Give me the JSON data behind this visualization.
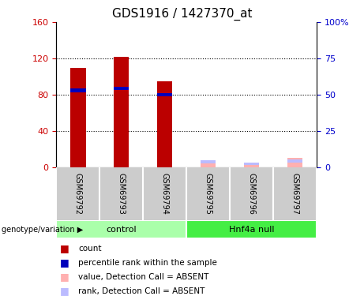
{
  "title": "GDS1916 / 1427370_at",
  "samples": [
    "GSM69792",
    "GSM69793",
    "GSM69794",
    "GSM69795",
    "GSM69796",
    "GSM69797"
  ],
  "groups": [
    {
      "label": "control",
      "indices": [
        0,
        1,
        2
      ],
      "color": "#aaffaa"
    },
    {
      "label": "Hnf4a null",
      "indices": [
        3,
        4,
        5
      ],
      "color": "#44ee44"
    }
  ],
  "red_bars": [
    110,
    122,
    95,
    0,
    0,
    0
  ],
  "blue_markers": [
    85,
    87,
    80,
    0,
    0,
    0
  ],
  "pink_bars": [
    0,
    0,
    0,
    8,
    5,
    10
  ],
  "lightblue_markers": [
    0,
    0,
    0,
    6,
    4,
    7
  ],
  "ylim_left": [
    0,
    160
  ],
  "ylim_right": [
    0,
    100
  ],
  "yticks_left": [
    0,
    40,
    80,
    120,
    160
  ],
  "yticks_right": [
    0,
    25,
    50,
    75,
    100
  ],
  "ytick_labels_right": [
    "0",
    "25",
    "50",
    "75",
    "100%"
  ],
  "grid_lines": [
    40,
    80,
    120
  ],
  "bar_width": 0.35,
  "red_color": "#BB0000",
  "blue_color": "#0000BB",
  "pink_color": "#FFB0B0",
  "lightblue_color": "#BBBBFF",
  "bg_color": "#FFFFFF",
  "label_color_left": "#CC0000",
  "label_color_right": "#0000CC",
  "genotype_label": "genotype/variation",
  "legend_items": [
    {
      "label": "count",
      "color": "#BB0000"
    },
    {
      "label": "percentile rank within the sample",
      "color": "#0000BB"
    },
    {
      "label": "value, Detection Call = ABSENT",
      "color": "#FFB0B0"
    },
    {
      "label": "rank, Detection Call = ABSENT",
      "color": "#BBBBFF"
    }
  ]
}
